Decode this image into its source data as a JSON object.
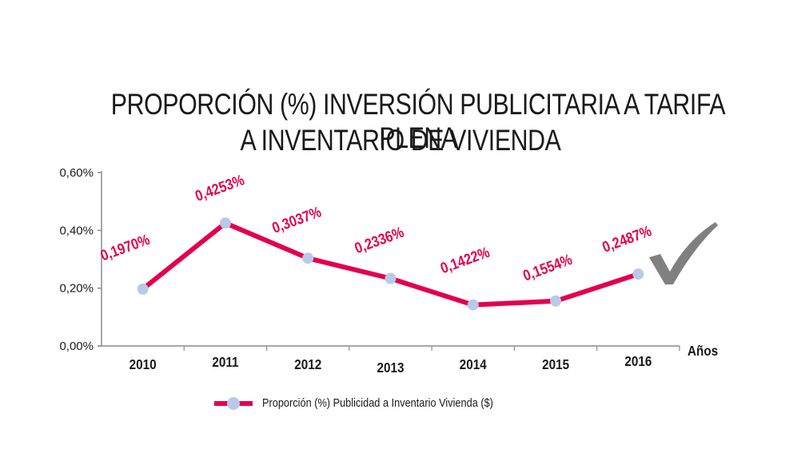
{
  "chart_data": {
    "type": "line",
    "title": "PROPORCIÓN (%) INVERSIÓN PUBLICITARIA A TARIFA PLENA A INVENTARIO DE VIVIENDA",
    "title_lines": [
      "PROPORCIÓN (%) INVERSIÓN PUBLICITARIA A TARIFA PLENA",
      "A INVENTARIO DE VIVIENDA"
    ],
    "xlabel": "Años",
    "ylabel": "",
    "categories": [
      "2010",
      "2011",
      "2012",
      "2013",
      "2014",
      "2015",
      "2016"
    ],
    "series": [
      {
        "name": "Proporción (%) Publicidad a Inventario Vivienda ($)",
        "values": [
          0.197,
          0.4253,
          0.3037,
          0.2336,
          0.1422,
          0.1554,
          0.2487
        ],
        "data_labels": [
          "0,1970%",
          "0,4253%",
          "0,3037%",
          "0,2336%",
          "0,1422%",
          "0,1554%",
          "0,2487%"
        ],
        "line_color": "#e2004f",
        "marker_color": "#b8cae8"
      }
    ],
    "ylim": [
      0,
      0.6
    ],
    "yticks": [
      0,
      0.2,
      0.4,
      0.6
    ],
    "ytick_labels": [
      "0,00%",
      "0,20%",
      "0,40%",
      "0,60%"
    ],
    "grid": false,
    "legend_position": "bottom",
    "annotation": "gray checkmark next to 2016"
  }
}
